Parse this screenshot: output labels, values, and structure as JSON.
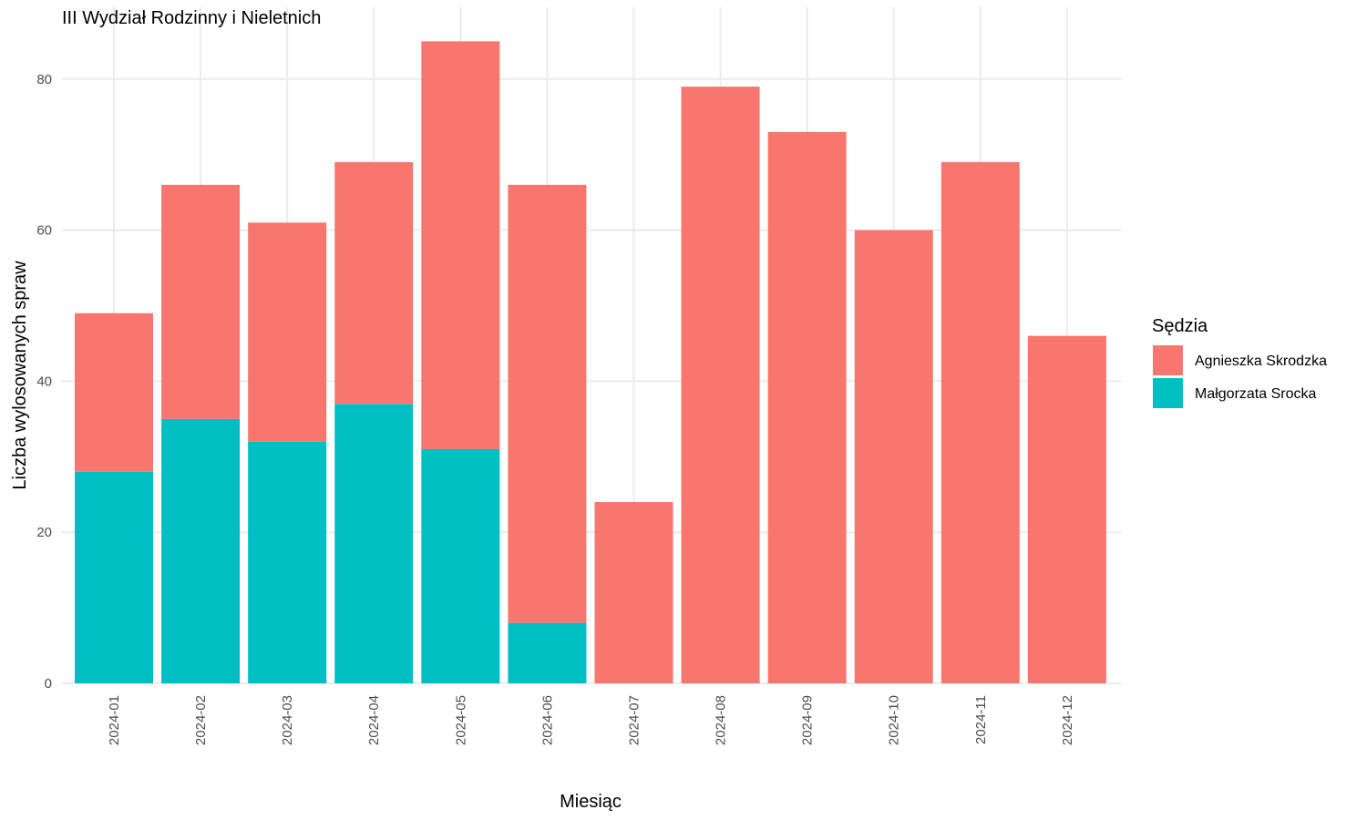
{
  "chart_data": {
    "type": "bar",
    "stacked": true,
    "title": "III Wydział Rodzinny i Nieletnich",
    "xlabel": "Miesiąc",
    "ylabel": "Liczba wylosowanych spraw",
    "ylim": [
      0,
      90
    ],
    "yticks": [
      0,
      20,
      40,
      60,
      80
    ],
    "grid": true,
    "legend_position": "right",
    "legend_title": "Sędzia",
    "categories": [
      "2024-01",
      "2024-02",
      "2024-03",
      "2024-04",
      "2024-05",
      "2024-06",
      "2024-07",
      "2024-08",
      "2024-09",
      "2024-10",
      "2024-11",
      "2024-12"
    ],
    "series": [
      {
        "name": "Agnieszka Skrodzka",
        "color": "#F8766D",
        "values": [
          21,
          31,
          29,
          32,
          54,
          58,
          24,
          79,
          73,
          60,
          69,
          46
        ]
      },
      {
        "name": "Małgorzata Srocka",
        "color": "#00BFC4",
        "values": [
          28,
          35,
          32,
          37,
          31,
          8,
          0,
          0,
          0,
          0,
          0,
          0
        ]
      }
    ]
  }
}
